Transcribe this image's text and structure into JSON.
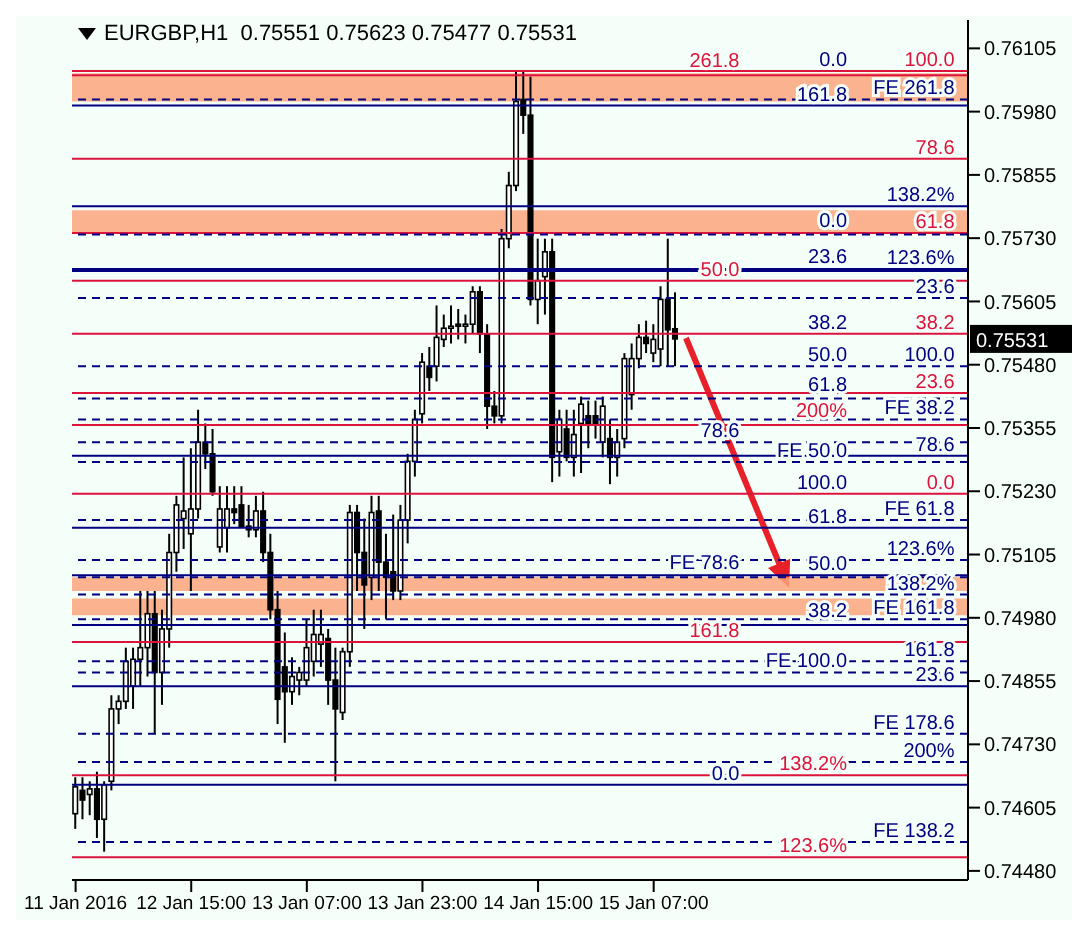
{
  "chart_data": {
    "type": "candlestick",
    "title": "EURGBP,H1  0.75551 0.75623 0.75477 0.75531",
    "categories": [
      "11 Jan 2016",
      null,
      null,
      null,
      null,
      null,
      null,
      null,
      null,
      null,
      null,
      null,
      null,
      null,
      null,
      null,
      "12 Jan 15:00",
      null,
      null,
      null,
      null,
      null,
      null,
      null,
      null,
      null,
      null,
      null,
      null,
      null,
      null,
      null,
      "13 Jan 07:00",
      null,
      null,
      null,
      null,
      null,
      null,
      null,
      null,
      null,
      null,
      null,
      null,
      null,
      null,
      null,
      "13 Jan 23:00",
      null,
      null,
      null,
      null,
      null,
      null,
      null,
      null,
      null,
      null,
      null,
      null,
      null,
      null,
      null,
      "14 Jan 15:00",
      null,
      null,
      null,
      null,
      null,
      null,
      null,
      null,
      null,
      null,
      null,
      null,
      null,
      null,
      null,
      "15 Jan 07:00",
      null,
      null,
      null,
      null,
      null,
      null,
      null,
      null,
      null,
      null,
      null,
      null,
      null,
      null,
      null,
      null,
      null,
      null,
      null,
      null,
      null,
      null,
      null,
      null,
      null,
      null,
      null,
      null,
      null,
      null,
      null,
      null,
      null,
      null,
      null,
      null,
      null,
      null,
      null,
      null,
      null,
      null,
      null
    ],
    "ohlc": [
      [
        0.74593,
        0.74665,
        0.74563,
        0.74646
      ],
      [
        0.74639,
        0.74665,
        0.74582,
        0.7462
      ],
      [
        0.74631,
        0.74657,
        0.7459,
        0.74642
      ],
      [
        0.74642,
        0.74676,
        0.74545,
        0.74582
      ],
      [
        0.74582,
        0.74657,
        0.74518,
        0.7465
      ],
      [
        0.74657,
        0.74827,
        0.74639,
        0.748
      ],
      [
        0.748,
        0.74827,
        0.7477,
        0.74815
      ],
      [
        0.74815,
        0.74921,
        0.748,
        0.74894
      ],
      [
        0.74845,
        0.74921,
        0.748,
        0.74898
      ],
      [
        0.74898,
        0.75033,
        0.74845,
        0.74921
      ],
      [
        0.74921,
        0.75033,
        0.74864,
        0.74988
      ],
      [
        0.74988,
        0.75033,
        0.74751,
        0.74872
      ],
      [
        0.74872,
        0.74996,
        0.74808,
        0.74958
      ],
      [
        0.74958,
        0.75146,
        0.74921,
        0.75109
      ],
      [
        0.75109,
        0.75221,
        0.75071,
        0.75203
      ],
      [
        0.75176,
        0.75297,
        0.75116,
        0.75191
      ],
      [
        0.75146,
        0.75315,
        0.75033,
        0.75195
      ],
      [
        0.75195,
        0.75391,
        0.75176,
        0.75327
      ],
      [
        0.75327,
        0.75364,
        0.75274,
        0.75304
      ],
      [
        0.75304,
        0.75353,
        0.75221,
        0.75229
      ],
      [
        0.7512,
        0.7524,
        0.75109,
        0.75195
      ],
      [
        0.75158,
        0.7524,
        0.75109,
        0.75195
      ],
      [
        0.75195,
        0.7524,
        0.75165,
        0.75188
      ],
      [
        0.75203,
        0.7524,
        0.75158,
        0.75161
      ],
      [
        0.75161,
        0.75203,
        0.75139,
        0.75154
      ],
      [
        0.75154,
        0.75221,
        0.75139,
        0.75191
      ],
      [
        0.75191,
        0.75229,
        0.7509,
        0.75109
      ],
      [
        0.75109,
        0.75146,
        0.74977,
        0.74996
      ],
      [
        0.74996,
        0.75033,
        0.7477,
        0.74819
      ],
      [
        0.74883,
        0.74951,
        0.74733,
        0.74834
      ],
      [
        0.74834,
        0.74902,
        0.74808,
        0.74864
      ],
      [
        0.74857,
        0.74883,
        0.74827,
        0.74872
      ],
      [
        0.74857,
        0.74977,
        0.74845,
        0.74921
      ],
      [
        0.74894,
        0.74996,
        0.74864,
        0.74947
      ],
      [
        0.74928,
        0.74996,
        0.74883,
        0.74947
      ],
      [
        0.74939,
        0.74958,
        0.74808,
        0.74857
      ],
      [
        0.74857,
        0.74921,
        0.74657,
        0.748
      ],
      [
        0.74793,
        0.74921,
        0.74778,
        0.74913
      ],
      [
        0.74913,
        0.75203,
        0.74883,
        0.75188
      ],
      [
        0.75188,
        0.75203,
        0.75033,
        0.75109
      ],
      [
        0.75109,
        0.75176,
        0.74958,
        0.75045
      ],
      [
        0.7506,
        0.75221,
        0.75015,
        0.75188
      ],
      [
        0.75191,
        0.75221,
        0.75033,
        0.7509
      ],
      [
        0.7509,
        0.75146,
        0.74977,
        0.7506
      ],
      [
        0.75071,
        0.75184,
        0.75015,
        0.75033
      ],
      [
        0.75033,
        0.75203,
        0.75015,
        0.75173
      ],
      [
        0.75173,
        0.75304,
        0.75127,
        0.75289
      ],
      [
        0.75289,
        0.75391,
        0.75259,
        0.75372
      ],
      [
        0.75383,
        0.75503,
        0.75364,
        0.75485
      ],
      [
        0.75477,
        0.75515,
        0.75428,
        0.75455
      ],
      [
        0.75477,
        0.75597,
        0.75447,
        0.75534
      ],
      [
        0.7553,
        0.75579,
        0.75515,
        0.75552
      ],
      [
        0.75556,
        0.75597,
        0.75522,
        0.75556
      ],
      [
        0.7556,
        0.7559,
        0.7553,
        0.75556
      ],
      [
        0.75556,
        0.75579,
        0.75522,
        0.7556
      ],
      [
        0.7556,
        0.75635,
        0.75541,
        0.75624
      ],
      [
        0.75624,
        0.75635,
        0.75503,
        0.75541
      ],
      [
        0.75541,
        0.7556,
        0.75353,
        0.75398
      ],
      [
        0.75398,
        0.75428,
        0.75364,
        0.75379
      ],
      [
        0.75379,
        0.75748,
        0.75364,
        0.75729
      ],
      [
        0.75729,
        0.75861,
        0.7571,
        0.75834
      ],
      [
        0.75834,
        0.7606,
        0.75823,
        0.76
      ],
      [
        0.76004,
        0.7606,
        0.75936,
        0.75973
      ],
      [
        0.75973,
        0.76049,
        0.75597,
        0.75609
      ],
      [
        0.75609,
        0.75729,
        0.7556,
        0.75646
      ],
      [
        0.75654,
        0.75729,
        0.75579,
        0.75703
      ],
      [
        0.75703,
        0.75729,
        0.75248,
        0.75297
      ],
      [
        0.75308,
        0.75391,
        0.75259,
        0.75372
      ],
      [
        0.75353,
        0.75391,
        0.75289,
        0.75297
      ],
      [
        0.75297,
        0.75391,
        0.75259,
        0.75342
      ],
      [
        0.75364,
        0.75417,
        0.75266,
        0.75402
      ],
      [
        0.75379,
        0.75409,
        0.75315,
        0.75364
      ],
      [
        0.75379,
        0.75409,
        0.75334,
        0.75361
      ],
      [
        0.75327,
        0.75417,
        0.75297,
        0.75398
      ],
      [
        0.75334,
        0.75372,
        0.75244,
        0.75297
      ],
      [
        0.75297,
        0.75353,
        0.75259,
        0.75327
      ],
      [
        0.75334,
        0.75503,
        0.75315,
        0.75492
      ],
      [
        0.75421,
        0.75522,
        0.75391,
        0.75492
      ],
      [
        0.75492,
        0.7556,
        0.75473,
        0.75534
      ],
      [
        0.75534,
        0.75567,
        0.75503,
        0.75522
      ],
      [
        0.75503,
        0.7556,
        0.75485,
        0.7553
      ],
      [
        0.75511,
        0.75635,
        0.75477,
        0.75609
      ],
      [
        0.75609,
        0.75729,
        0.75477,
        0.75549
      ],
      [
        0.75551,
        0.75623,
        0.75477,
        0.75531
      ],
      null,
      null,
      null,
      null,
      null,
      null,
      null,
      null,
      null,
      null,
      null,
      null,
      null,
      null,
      null,
      null,
      null,
      null,
      null,
      null,
      null,
      null,
      null,
      null,
      null,
      null,
      null,
      null,
      null,
      null,
      null,
      null,
      null,
      null,
      null,
      null,
      null,
      null,
      null,
      null
    ],
    "ylim": [
      0.74462,
      0.76161
    ],
    "yticks": [
      0.76105,
      {
        "value": 0.7598,
        "label": "0.75980"
      },
      0.75855,
      {
        "value": 0.7573,
        "label": "0.75730"
      },
      0.75605,
      {
        "value": 0.7548,
        "label": "0.75480"
      },
      0.75355,
      {
        "value": 0.7523,
        "label": "0.75230"
      },
      0.75105,
      {
        "value": 0.7498,
        "label": "0.74980"
      },
      0.74855,
      {
        "value": 0.7473,
        "label": "0.74730"
      },
      0.74605,
      {
        "value": 0.7448,
        "label": "0.74480"
      }
    ],
    "ref_lines": [
      {
        "axis": "y",
        "value": 0.7606,
        "color": "#dc143c",
        "line_style": "solid"
      },
      {
        "axis": "y",
        "value": 0.75887,
        "color": "#dc143c",
        "line_style": "solid"
      },
      {
        "axis": "y",
        "value": 0.7574,
        "color": "#dc143c",
        "line_style": "solid"
      },
      {
        "axis": "y",
        "value": 0.75646,
        "color": "#dc143c",
        "line_style": "solid"
      },
      {
        "axis": "y",
        "value": 0.75541,
        "color": "#dc143c",
        "line_style": "solid"
      },
      {
        "axis": "y",
        "value": 0.75424,
        "color": "#dc143c",
        "line_style": "solid"
      },
      {
        "axis": "y",
        "value": 0.75225,
        "color": "#dc143c",
        "line_style": "solid"
      },
      {
        "axis": "y",
        "value": 0.76052,
        "color": "#dc143c",
        "line_style": "solid"
      },
      {
        "axis": "y",
        "value": 0.75361,
        "color": "#dc143c",
        "line_style": "solid"
      },
      {
        "axis": "y",
        "value": 0.74932,
        "color": "#dc143c",
        "line_style": "solid"
      },
      {
        "axis": "y",
        "value": 0.74669,
        "color": "#dc143c",
        "line_style": "solid"
      },
      {
        "axis": "y",
        "value": 0.74507,
        "color": "#dc143c",
        "line_style": "solid"
      },
      {
        "axis": "y",
        "value": 0.75992,
        "color": "#000080",
        "line_style": "solid"
      },
      {
        "axis": "y",
        "value": 0.75793,
        "color": "#000080",
        "line_style": "solid"
      },
      {
        "axis": "y",
        "value": 0.75669,
        "color": "#000080",
        "line_style": "solid"
      },
      {
        "axis": "y",
        "value": 0.75477,
        "color": "#000080",
        "line_style": "dashed"
      },
      {
        "axis": "y",
        "value": 0.753,
        "color": "#000080",
        "line_style": "solid"
      },
      {
        "axis": "y",
        "value": 0.75158,
        "color": "#000080",
        "line_style": "solid"
      },
      {
        "axis": "y",
        "value": 0.75064,
        "color": "#000080",
        "line_style": "solid"
      },
      {
        "axis": "y",
        "value": 0.74966,
        "color": "#000080",
        "line_style": "solid"
      },
      {
        "axis": "y",
        "value": 0.74845,
        "color": "#000080",
        "line_style": "solid"
      },
      {
        "axis": "y",
        "value": 0.7465,
        "color": "#000080",
        "line_style": "solid"
      },
      {
        "axis": "y",
        "value": 0.76004,
        "color": "#000080",
        "line_style": "dashed"
      },
      {
        "axis": "y",
        "value": 0.75737,
        "color": "#000080",
        "line_style": "dashed"
      },
      {
        "axis": "y",
        "value": 0.75665,
        "color": "#000080",
        "line_style": "solid"
      },
      {
        "axis": "y",
        "value": 0.75612,
        "color": "#000080",
        "line_style": "dashed"
      },
      {
        "axis": "y",
        "value": 0.75413,
        "color": "#000080",
        "line_style": "dashed"
      },
      {
        "axis": "y",
        "value": 0.75327,
        "color": "#000080",
        "line_style": "dashed"
      },
      {
        "axis": "y",
        "value": 0.75094,
        "color": "#000080",
        "line_style": "dashed"
      },
      {
        "axis": "y",
        "value": 0.75026,
        "color": "#000080",
        "line_style": "dashed"
      },
      {
        "axis": "y",
        "value": 0.74977,
        "color": "#000080",
        "line_style": "dashed"
      },
      {
        "axis": "y",
        "value": 0.74894,
        "color": "#000080",
        "line_style": "dashed"
      },
      {
        "axis": "y",
        "value": 0.74751,
        "color": "#000080",
        "line_style": "dashed"
      },
      {
        "axis": "y",
        "value": 0.74695,
        "color": "#000080",
        "line_style": "dashed"
      },
      {
        "axis": "y",
        "value": 0.75372,
        "color": "#000080",
        "line_style": "dashed"
      },
      {
        "axis": "y",
        "value": 0.75288,
        "color": "#000080",
        "line_style": "dashed"
      },
      {
        "axis": "y",
        "value": 0.75173,
        "color": "#000080",
        "line_style": "dashed"
      },
      {
        "axis": "y",
        "value": 0.7506,
        "color": "#000080",
        "line_style": "dashed"
      },
      {
        "axis": "y",
        "value": 0.74872,
        "color": "#000080",
        "line_style": "dashed"
      },
      {
        "axis": "y",
        "value": 0.74537,
        "color": "#000080",
        "line_style": "dashed"
      }
    ],
    "bands": [
      {
        "axis": "y",
        "from": 0.76,
        "to": 0.76056,
        "color": "#fca57a"
      },
      {
        "axis": "y",
        "from": 0.7574,
        "to": 0.75785,
        "color": "#fca57a"
      },
      {
        "axis": "y",
        "from": 0.75033,
        "to": 0.7506,
        "color": "#fca57a"
      },
      {
        "axis": "y",
        "from": 0.74985,
        "to": 0.75018,
        "color": "#fca57a"
      }
    ],
    "annotations": [
      {
        "text": "100.0",
        "y": 0.7606
      },
      {
        "text": "78.6",
        "y": 0.75887
      },
      {
        "text": "61.8",
        "y": 0.7574
      },
      {
        "text": "50.0",
        "y": 0.75646
      },
      {
        "text": "38.2",
        "y": 0.75541
      },
      {
        "text": "23.6",
        "y": 0.75424
      },
      {
        "text": "0.0",
        "y": 0.75225
      },
      {
        "text": "261.8",
        "y": 0.76052
      },
      {
        "text": "200%",
        "y": 0.75361
      },
      {
        "text": "161.8",
        "y": 0.74932
      },
      {
        "text": "138.2%",
        "y": 0.74669
      },
      {
        "text": "123.6%",
        "y": 0.74507
      },
      {
        "text": "161.8",
        "y": 0.75992
      },
      {
        "text": "138.2%",
        "y": 0.75793
      },
      {
        "text": "123.6%",
        "y": 0.75669
      },
      {
        "text": "100.0",
        "y": 0.75477
      },
      {
        "text": "78.6",
        "y": 0.753
      },
      {
        "text": "61.8",
        "y": 0.75158
      },
      {
        "text": "50.0",
        "y": 0.75064
      },
      {
        "text": "38.2",
        "y": 0.74966
      },
      {
        "text": "23.6",
        "y": 0.74845
      },
      {
        "text": "0.0",
        "y": 0.7465
      },
      {
        "text": "FE 261.8",
        "y": 0.76004
      },
      {
        "text": "0.0",
        "y": 0.75737
      },
      {
        "text": "23.6",
        "y": 0.75665
      },
      {
        "text": "23.6",
        "y": 0.75612
      },
      {
        "text": "61.8",
        "y": 0.75413
      },
      {
        "text": "78.6",
        "y": 0.75327
      },
      {
        "text": "123.6%",
        "y": 0.75094
      },
      {
        "text": "138.2%",
        "y": 0.75026
      },
      {
        "text": "FE 161.8",
        "y": 0.74977
      },
      {
        "text": "161.8",
        "y": 0.74894
      },
      {
        "text": "FE 178.6",
        "y": 0.74751
      },
      {
        "text": "200%",
        "y": 0.74695
      },
      {
        "text": "FE 38.2",
        "y": 0.75372
      },
      {
        "text": "FE 50.0",
        "y": 0.75288
      },
      {
        "text": "FE 61.8",
        "y": 0.75173
      },
      {
        "text": "FE 78.6",
        "y": 0.7506
      },
      {
        "text": "FE 100.0",
        "y": 0.74872
      },
      {
        "text": "FE 138.2",
        "y": 0.74537
      },
      {
        "text": "0.0",
        "y": 0.7606
      },
      {
        "text": "38.2",
        "y": 0.75541
      },
      {
        "text": "50.0",
        "y": 0.75477
      },
      {
        "text": "100.0",
        "y": 0.75225
      },
      "0.75531"
    ]
  }
}
